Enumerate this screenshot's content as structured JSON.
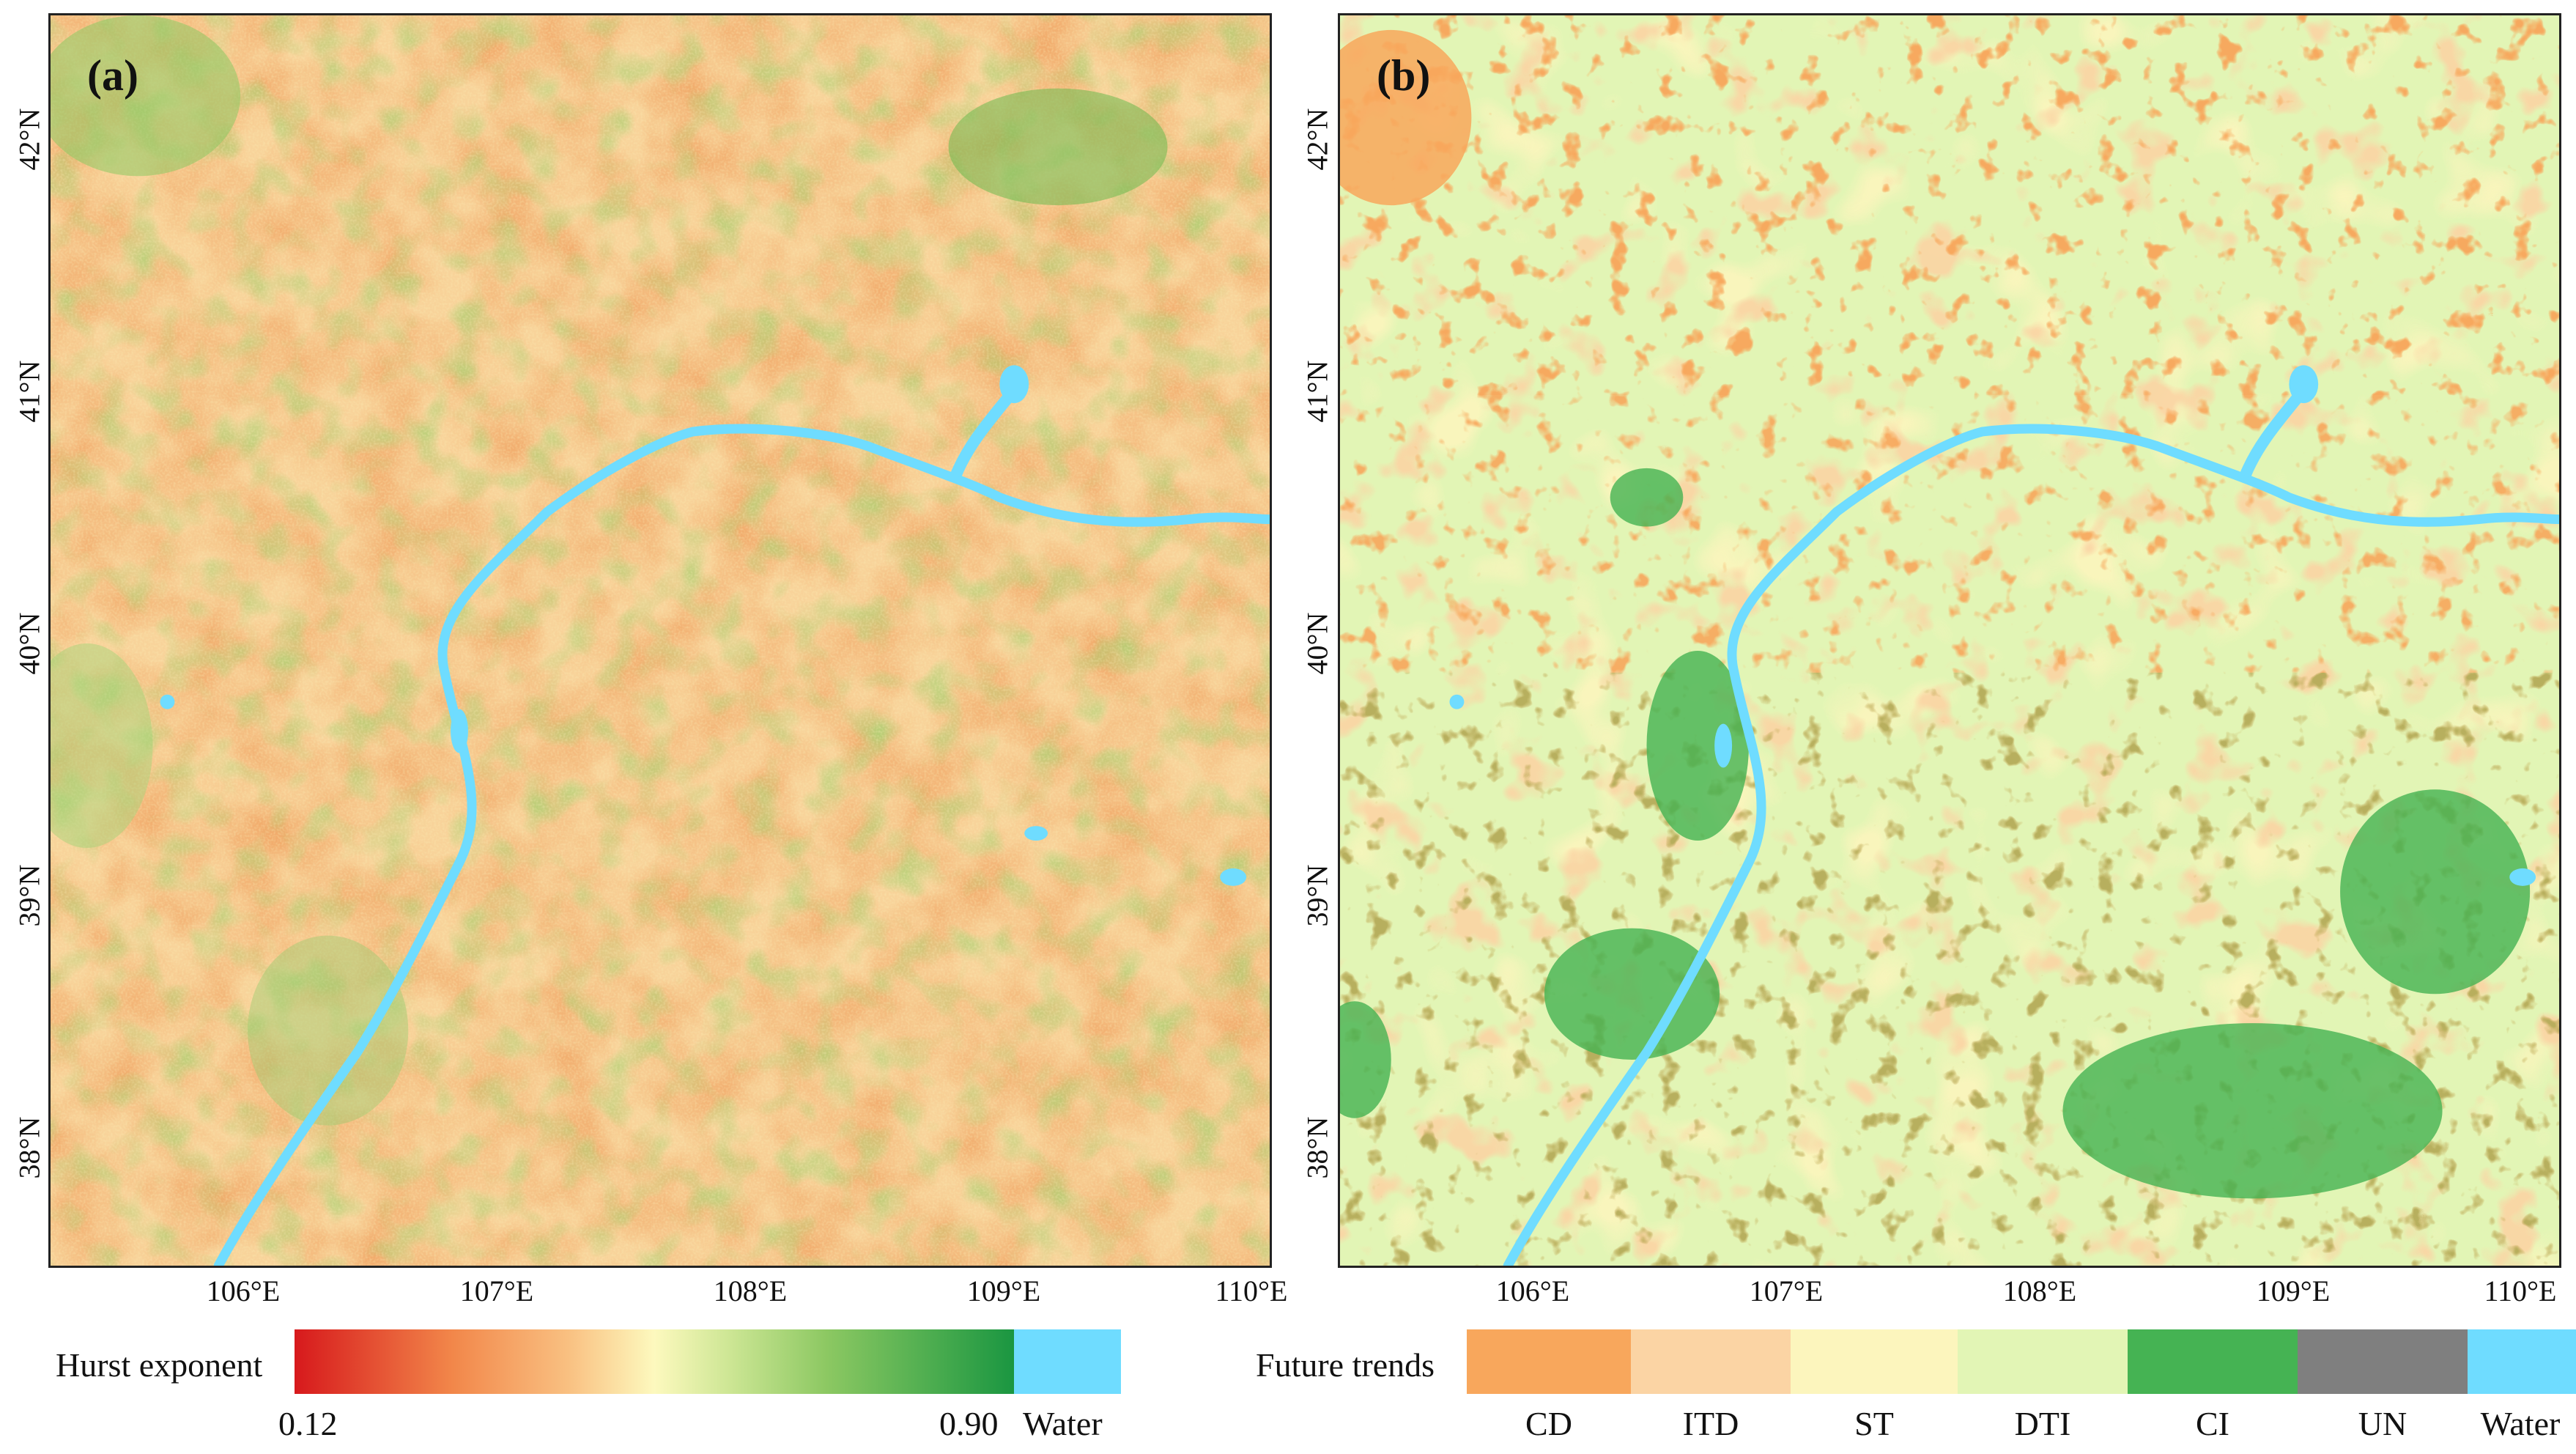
{
  "panels": {
    "a": {
      "letter": "(a)"
    },
    "b": {
      "letter": "(b)"
    }
  },
  "axes": {
    "lat_labels": [
      "42°N",
      "41°N",
      "40°N",
      "39°N",
      "38°N"
    ],
    "lon_labels": [
      "106°E",
      "107°E",
      "108°E",
      "109°E",
      "110°E"
    ]
  },
  "legend_a": {
    "title": "Hurst exponent",
    "min_label": "0.12",
    "max_label": "0.90",
    "water_label": "Water",
    "colors": [
      "#d7191c",
      "#f2874a",
      "#f9c081",
      "#fdf9be",
      "#cfe796",
      "#8cc862",
      "#4fae50",
      "#1a9641"
    ],
    "water_color": "#6fdcff"
  },
  "legend_b": {
    "title": "Future trends",
    "categories": [
      {
        "label": "CD",
        "color": "#f8a75c"
      },
      {
        "label": "ITD",
        "color": "#fbd4a4"
      },
      {
        "label": "ST",
        "color": "#fcf5bd"
      },
      {
        "label": "DTI",
        "color": "#e2f5b5"
      },
      {
        "label": "CI",
        "color": "#45b353"
      },
      {
        "label": "UN",
        "color": "#7f7f7f"
      },
      {
        "label": "Water",
        "color": "#6fdcff"
      }
    ]
  }
}
